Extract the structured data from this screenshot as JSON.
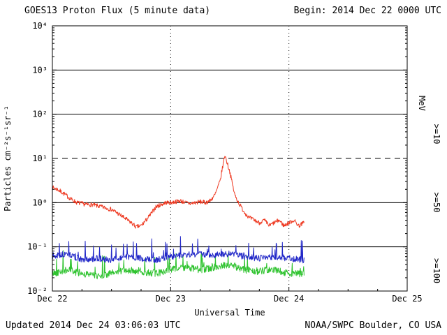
{
  "header": {
    "title": "GOES13 Proton Flux (5 minute data)",
    "begin_label": "Begin: 2014 Dec 22 0000 UTC"
  },
  "footer": {
    "updated": "Updated 2014 Dec 24 03:06:03 UTC",
    "credit": "NOAA/SWPC Boulder, CO USA"
  },
  "colors": {
    "axis": "#000000",
    "background": "#ffffff",
    "red_series": "#ee3820",
    "blue_series": "#2228c8",
    "green_series": "#2fc32f"
  },
  "chart_data": {
    "type": "line",
    "title": "GOES13 Proton Flux (5 minute data)",
    "xlabel": "Universal Time",
    "ylabel": "Particles cm⁻²s⁻¹sr⁻¹",
    "right_axis_label": "MeV",
    "y_scale": "log",
    "ylim_exponents": [
      -2,
      4
    ],
    "y_tick_exponents": [
      4,
      3,
      2,
      1,
      0,
      -1,
      -2
    ],
    "y_tick_labels": [
      "10⁴",
      "10³",
      "10²",
      "10¹",
      "10⁰",
      "10⁻¹",
      "10⁻²"
    ],
    "x_range_hours": [
      0,
      72
    ],
    "x_tick_hours": [
      0,
      24,
      48,
      72
    ],
    "x_tick_labels": [
      "Dec 22",
      "Dec 23",
      "Dec 24",
      "Dec 25"
    ],
    "grid": true,
    "legend_position": "right",
    "threshold_line": {
      "value": 10,
      "exponent": 1,
      "style": "dashed"
    },
    "data_end_hour": 51.1,
    "series": [
      {
        "name": "Protons >=10 MeV",
        "label": ">=10",
        "color": "#ee3820",
        "step_hours": 1,
        "values": [
          2.2,
          2.0,
          1.7,
          1.4,
          1.15,
          1.0,
          0.95,
          0.9,
          0.9,
          0.85,
          0.8,
          0.75,
          0.7,
          0.6,
          0.5,
          0.42,
          0.35,
          0.28,
          0.3,
          0.4,
          0.55,
          0.8,
          0.9,
          1.0,
          1.0,
          1.05,
          1.1,
          1.0,
          0.95,
          1.0,
          1.05,
          1.0,
          1.1,
          1.5,
          3.0,
          12.0,
          5.0,
          1.5,
          0.9,
          0.6,
          0.45,
          0.4,
          0.35,
          0.4,
          0.3,
          0.35,
          0.4,
          0.3,
          0.35,
          0.4,
          0.3,
          0.35
        ],
        "jitter_log": 0.05,
        "spike_prob": 0.0,
        "spike_amp": 0.0,
        "floor_log": -1.2,
        "seed": 7
      },
      {
        "name": "Protons >=50 MeV",
        "label": ">=50",
        "color": "#2228c8",
        "step_hours": 3,
        "values": [
          0.06,
          0.07,
          0.05,
          0.055,
          0.05,
          0.06,
          0.055,
          0.05,
          0.06,
          0.065,
          0.07,
          0.065,
          0.07,
          0.06,
          0.055,
          0.06,
          0.055,
          0.05
        ],
        "jitter_log": 0.07,
        "spike_prob": 0.1,
        "spike_amp": 0.45,
        "floor_log": -1.5,
        "seed": 13
      },
      {
        "name": "Protons >=100 MeV",
        "label": ">=100",
        "color": "#2fc32f",
        "step_hours": 3,
        "values": [
          0.025,
          0.03,
          0.025,
          0.022,
          0.025,
          0.03,
          0.028,
          0.025,
          0.03,
          0.035,
          0.03,
          0.035,
          0.04,
          0.03,
          0.028,
          0.03,
          0.025,
          0.025
        ],
        "jitter_log": 0.08,
        "spike_prob": 0.12,
        "spike_amp": 0.42,
        "floor_log": -1.78,
        "seed": 42
      }
    ]
  }
}
